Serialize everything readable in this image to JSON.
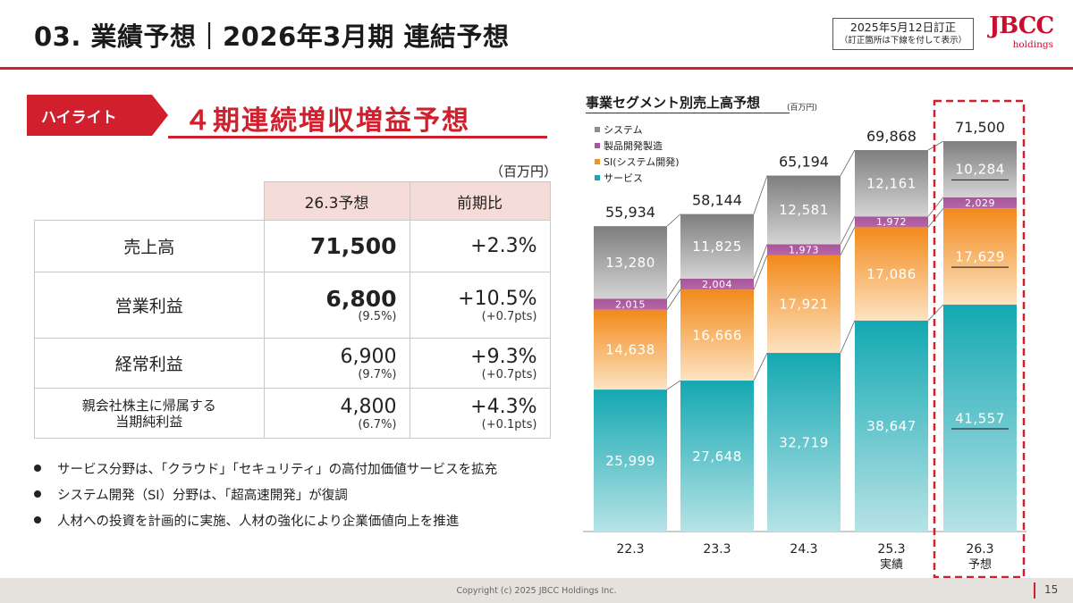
{
  "header": {
    "title": "03. 業績予想｜2026年3月期 連結予想",
    "revision_line1": "2025年5月12日訂正",
    "revision_line2": "（訂正箇所は下線を付して表示）",
    "logo_mark": "JBCC",
    "logo_sub": "holdings"
  },
  "highlight": {
    "tag": "ハイライト",
    "title": "４期連続増収増益予想"
  },
  "table": {
    "unit": "（百万円）",
    "columns": [
      "26.3予想",
      "前期比"
    ],
    "rows": [
      {
        "label": "売上高",
        "forecast": "71,500",
        "forecast_sub": "",
        "yoy": "+2.3%",
        "yoy_sub": ""
      },
      {
        "label": "営業利益",
        "forecast": "6,800",
        "forecast_sub": "(9.5%)",
        "yoy": "+10.5%",
        "yoy_sub": "(+0.7pts)"
      },
      {
        "label": "経常利益",
        "forecast": "6,900",
        "forecast_sub": "(9.7%)",
        "yoy": "+9.3%",
        "yoy_sub": "(+0.7pts)"
      },
      {
        "label_line1": "親会社株主に帰属する",
        "label_line2": "当期純利益",
        "forecast": "4,800",
        "forecast_sub": "(6.7%)",
        "yoy": "+4.3%",
        "yoy_sub": "(+0.1pts)"
      }
    ]
  },
  "bullets": [
    "サービス分野は、「クラウド」「セキュリティ」の高付加価値サービスを拡充",
    "システム開発（SI）分野は、「超高速開発」が復調",
    "人材への投資を計画的に実施、人材の強化により企業価値向上を推進"
  ],
  "chart_data": {
    "type": "bar",
    "stacked": true,
    "title": "事業セグメント別売上高予想",
    "unit": "(百万円)",
    "categories": [
      "22.3",
      "23.3",
      "24.3",
      "25.3",
      "26.3"
    ],
    "category_sublabels": [
      "",
      "",
      "",
      "実績",
      "予想"
    ],
    "series": [
      {
        "name": "サービス",
        "color": "#1aa7b0",
        "values": [
          25999,
          27648,
          32719,
          38647,
          41557
        ],
        "labels": [
          "25,999",
          "27,648",
          "32,719",
          "38,647",
          "41,557"
        ]
      },
      {
        "name": "SI(システム開発)",
        "color": "#f29020",
        "values": [
          14638,
          16666,
          17921,
          17086,
          17629
        ],
        "labels": [
          "14,638",
          "16,666",
          "17,921",
          "17,086",
          "17,629"
        ]
      },
      {
        "name": "製品開発製造",
        "color": "#a8559a",
        "values": [
          2015,
          2004,
          1973,
          1972,
          2029
        ],
        "labels": [
          "2,015",
          "2,004",
          "1,973",
          "1,972",
          "2,029"
        ]
      },
      {
        "name": "システム",
        "color": "#8c8c8c",
        "values": [
          13280,
          11825,
          12581,
          12161,
          10284
        ],
        "labels": [
          "13,280",
          "11,825",
          "12,581",
          "12,161",
          "10,284"
        ]
      }
    ],
    "totals": [
      "55,934",
      "58,144",
      "65,194",
      "69,868",
      "71,500"
    ],
    "total_values": [
      55934,
      58144,
      65194,
      69868,
      71500
    ],
    "legend_order": [
      "システム",
      "製品開発製造",
      "SI(システム開発)",
      "サービス"
    ],
    "legend_position": "top-left",
    "highlight_category": "26.3",
    "ylim": [
      0,
      72000
    ]
  },
  "footer": {
    "copyright": "Copyright (c) 2025 JBCC Holdings Inc.",
    "page": "15"
  }
}
